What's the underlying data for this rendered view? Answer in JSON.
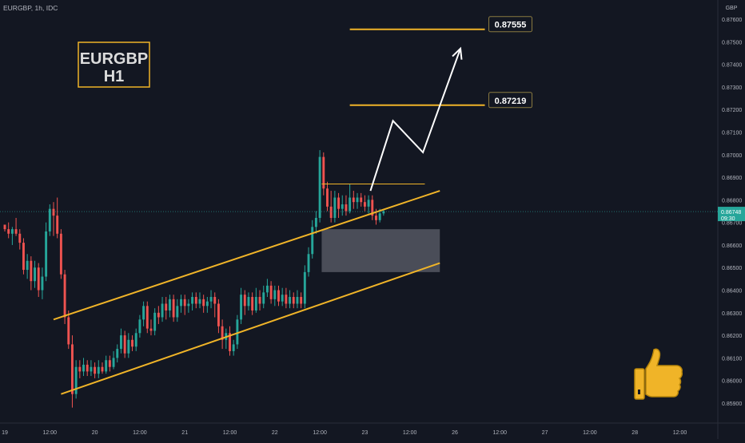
{
  "header": {
    "symbol_line": "EURGBP, 1h, IDC"
  },
  "currency_label": "GBP",
  "title_box": {
    "line1": "EURGBP",
    "line2": "H1"
  },
  "colors": {
    "background": "#131722",
    "bull": "#26a69a",
    "bear": "#ef5350",
    "annotation": "#f0b428",
    "price_line": "#26a69a",
    "text": "#b2b5be"
  },
  "price_tag": {
    "price": "0.86748",
    "time": "09:30"
  },
  "targets": [
    {
      "label": "0.87555",
      "value": 0.87555
    },
    {
      "label": "0.87219",
      "value": 0.87219
    }
  ],
  "icons": {
    "thumb": "thumbs-up-icon"
  },
  "chart_data": {
    "type": "candlestick",
    "title": "EURGBP H1",
    "ylabel": "GBP",
    "ylim": [
      0.8585,
      0.8763
    ],
    "current_price": 0.86748,
    "y_ticks": [
      "0.87600",
      "0.87500",
      "0.87400",
      "0.87300",
      "0.87200",
      "0.87100",
      "0.87000",
      "0.86900",
      "0.86800",
      "0.86700",
      "0.86600",
      "0.86500",
      "0.86400",
      "0.86300",
      "0.86200",
      "0.86100",
      "0.86000",
      "0.85900"
    ],
    "x_ticks": [
      {
        "label": "19",
        "t": 0
      },
      {
        "label": "12:00",
        "t": 12
      },
      {
        "label": "20",
        "t": 24
      },
      {
        "label": "12:00",
        "t": 36
      },
      {
        "label": "21",
        "t": 48
      },
      {
        "label": "12:00",
        "t": 60
      },
      {
        "label": "22",
        "t": 72
      },
      {
        "label": "12:00",
        "t": 84
      },
      {
        "label": "23",
        "t": 96
      },
      {
        "label": "12:00",
        "t": 108
      },
      {
        "label": "26",
        "t": 120
      },
      {
        "label": "12:00",
        "t": 132
      },
      {
        "label": "27",
        "t": 144
      },
      {
        "label": "12:00",
        "t": 156
      },
      {
        "label": "28",
        "t": 168
      },
      {
        "label": "12:00",
        "t": 180
      }
    ],
    "candles": [
      [
        0.8669,
        0.8667,
        0.8668,
        0.8666
      ],
      [
        0.8667,
        0.8665,
        0.867,
        0.8663
      ],
      [
        0.8665,
        0.8667,
        0.8668,
        0.866
      ],
      [
        0.8667,
        0.8665,
        0.8672,
        0.8664
      ],
      [
        0.8665,
        0.8661,
        0.8667,
        0.8658
      ],
      [
        0.8661,
        0.8649,
        0.8663,
        0.8647
      ],
      [
        0.8649,
        0.8653,
        0.8656,
        0.8645
      ],
      [
        0.8653,
        0.8644,
        0.8655,
        0.864
      ],
      [
        0.8644,
        0.865,
        0.8653,
        0.8641
      ],
      [
        0.865,
        0.864,
        0.8652,
        0.8637
      ],
      [
        0.864,
        0.8646,
        0.865,
        0.8636
      ],
      [
        0.8646,
        0.8666,
        0.867,
        0.8644
      ],
      [
        0.8666,
        0.8676,
        0.8678,
        0.8664
      ],
      [
        0.8676,
        0.8673,
        0.8679,
        0.8664
      ],
      [
        0.8673,
        0.8665,
        0.8681,
        0.8663
      ],
      [
        0.8665,
        0.8647,
        0.8667,
        0.8645
      ],
      [
        0.8647,
        0.8628,
        0.8649,
        0.8625
      ],
      [
        0.8628,
        0.8616,
        0.8631,
        0.8614
      ],
      [
        0.8616,
        0.8594,
        0.862,
        0.8588
      ],
      [
        0.8594,
        0.8606,
        0.8609,
        0.8592
      ],
      [
        0.8606,
        0.8604,
        0.8609,
        0.8601
      ],
      [
        0.8604,
        0.8607,
        0.861,
        0.8602
      ],
      [
        0.8607,
        0.8604,
        0.8609,
        0.8602
      ],
      [
        0.8604,
        0.8606,
        0.8609,
        0.8602
      ],
      [
        0.8606,
        0.8603,
        0.8608,
        0.8601
      ],
      [
        0.8603,
        0.8606,
        0.8609,
        0.8601
      ],
      [
        0.8606,
        0.8604,
        0.8608,
        0.8603
      ],
      [
        0.8604,
        0.8609,
        0.8611,
        0.8603
      ],
      [
        0.8609,
        0.8606,
        0.8611,
        0.8604
      ],
      [
        0.8606,
        0.861,
        0.8613,
        0.8605
      ],
      [
        0.861,
        0.8614,
        0.8616,
        0.8608
      ],
      [
        0.8614,
        0.862,
        0.8623,
        0.8612
      ],
      [
        0.862,
        0.8612,
        0.8622,
        0.861
      ],
      [
        0.8612,
        0.8618,
        0.8621,
        0.861
      ],
      [
        0.8618,
        0.8615,
        0.862,
        0.8613
      ],
      [
        0.8615,
        0.8621,
        0.8623,
        0.8613
      ],
      [
        0.8621,
        0.8627,
        0.8629,
        0.8619
      ],
      [
        0.8627,
        0.8633,
        0.8635,
        0.8624
      ],
      [
        0.8633,
        0.8623,
        0.8635,
        0.8621
      ],
      [
        0.8623,
        0.8622,
        0.8627,
        0.862
      ],
      [
        0.8622,
        0.863,
        0.8632,
        0.862
      ],
      [
        0.863,
        0.8628,
        0.8633,
        0.8625
      ],
      [
        0.8628,
        0.8634,
        0.8637,
        0.8626
      ],
      [
        0.8634,
        0.8631,
        0.8637,
        0.8627
      ],
      [
        0.8631,
        0.8636,
        0.8638,
        0.8628
      ],
      [
        0.8636,
        0.8628,
        0.8638,
        0.8626
      ],
      [
        0.8628,
        0.8633,
        0.8636,
        0.8626
      ],
      [
        0.8633,
        0.8636,
        0.8638,
        0.863
      ],
      [
        0.8636,
        0.8633,
        0.8638,
        0.8629
      ],
      [
        0.8633,
        0.8634,
        0.8636,
        0.863
      ],
      [
        0.8634,
        0.8637,
        0.8639,
        0.8631
      ],
      [
        0.8637,
        0.8634,
        0.8639,
        0.8632
      ],
      [
        0.8634,
        0.8636,
        0.8639,
        0.8632
      ],
      [
        0.8636,
        0.8633,
        0.8638,
        0.863
      ],
      [
        0.8633,
        0.8635,
        0.8637,
        0.863
      ],
      [
        0.8635,
        0.8637,
        0.864,
        0.8632
      ],
      [
        0.8637,
        0.8634,
        0.8639,
        0.8628
      ],
      [
        0.8634,
        0.8624,
        0.8636,
        0.8621
      ],
      [
        0.8624,
        0.8618,
        0.8627,
        0.8614
      ],
      [
        0.8618,
        0.8621,
        0.8623,
        0.8614
      ],
      [
        0.8621,
        0.8613,
        0.8624,
        0.8611
      ],
      [
        0.8613,
        0.8616,
        0.8618,
        0.8611
      ],
      [
        0.8616,
        0.8627,
        0.8629,
        0.8614
      ],
      [
        0.8627,
        0.8638,
        0.8641,
        0.8625
      ],
      [
        0.8638,
        0.8633,
        0.864,
        0.8629
      ],
      [
        0.8633,
        0.8637,
        0.8639,
        0.8631
      ],
      [
        0.8637,
        0.8631,
        0.8639,
        0.8629
      ],
      [
        0.8631,
        0.8637,
        0.8641,
        0.863
      ],
      [
        0.8637,
        0.8634,
        0.864,
        0.8631
      ],
      [
        0.8634,
        0.8639,
        0.8642,
        0.8632
      ],
      [
        0.8639,
        0.8642,
        0.8645,
        0.8637
      ],
      [
        0.8642,
        0.8636,
        0.8644,
        0.8634
      ],
      [
        0.8636,
        0.864,
        0.8642,
        0.8633
      ],
      [
        0.864,
        0.8635,
        0.8642,
        0.8633
      ],
      [
        0.8635,
        0.8638,
        0.8641,
        0.8633
      ],
      [
        0.8638,
        0.8634,
        0.8641,
        0.8632
      ],
      [
        0.8634,
        0.8637,
        0.864,
        0.8632
      ],
      [
        0.8637,
        0.8634,
        0.8639,
        0.8632
      ],
      [
        0.8634,
        0.8637,
        0.864,
        0.8632
      ],
      [
        0.8637,
        0.8634,
        0.8639,
        0.8632
      ],
      [
        0.8634,
        0.8648,
        0.8651,
        0.8632
      ],
      [
        0.8648,
        0.8656,
        0.8659,
        0.8646
      ],
      [
        0.8656,
        0.8668,
        0.8671,
        0.8654
      ],
      [
        0.8668,
        0.8672,
        0.8675,
        0.8665
      ],
      [
        0.8672,
        0.8699,
        0.8702,
        0.867
      ],
      [
        0.8699,
        0.8685,
        0.8701,
        0.8682
      ],
      [
        0.8685,
        0.8677,
        0.8688,
        0.8675
      ],
      [
        0.8677,
        0.8672,
        0.8684,
        0.867
      ],
      [
        0.8672,
        0.8681,
        0.8684,
        0.867
      ],
      [
        0.8681,
        0.8676,
        0.8683,
        0.8672
      ],
      [
        0.8676,
        0.8678,
        0.8682,
        0.8673
      ],
      [
        0.8678,
        0.8675,
        0.8682,
        0.8673
      ],
      [
        0.8675,
        0.8681,
        0.8687,
        0.8674
      ],
      [
        0.8681,
        0.8679,
        0.8684,
        0.8676
      ],
      [
        0.8679,
        0.8681,
        0.8683,
        0.8676
      ],
      [
        0.8681,
        0.8679,
        0.8683,
        0.8677
      ],
      [
        0.8679,
        0.8677,
        0.8682,
        0.8675
      ],
      [
        0.8677,
        0.868,
        0.8682,
        0.8674
      ],
      [
        0.868,
        0.8673,
        0.8682,
        0.8671
      ],
      [
        0.8673,
        0.8671,
        0.8676,
        0.8669
      ],
      [
        0.8671,
        0.8674,
        0.8676,
        0.867
      ],
      [
        0.8674,
        0.8675,
        0.8676,
        0.8673
      ]
    ],
    "annotations": {
      "channel_upper": [
        [
          13,
          0.8627
        ],
        [
          116,
          0.8684
        ]
      ],
      "channel_lower": [
        [
          15,
          0.8594
        ],
        [
          116,
          0.8652
        ]
      ],
      "zone": {
        "t_range": [
          84.5,
          116
        ],
        "price_range": [
          0.8648,
          0.8667
        ]
      },
      "resistance_short": [
        [
          84.5,
          0.8687
        ],
        [
          112,
          0.8687
        ]
      ],
      "target_lines": [
        [
          92,
          0.87555
        ],
        [
          128,
          0.87555
        ],
        [
          92,
          0.87219
        ],
        [
          128,
          0.87219
        ]
      ],
      "forecast_path": [
        [
          97.5,
          0.8684
        ],
        [
          103.5,
          0.8715
        ],
        [
          111.5,
          0.8701
        ],
        [
          121.5,
          0.8747
        ]
      ]
    }
  }
}
